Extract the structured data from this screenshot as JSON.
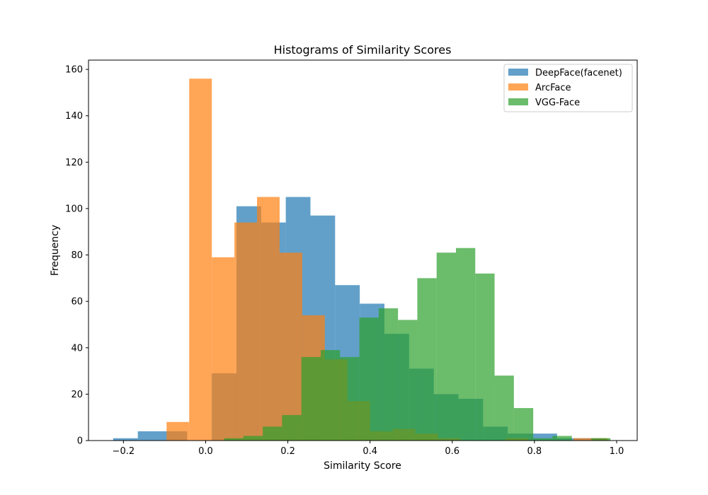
{
  "chart_data": {
    "type": "histogram",
    "title": "Histograms of Similarity Scores",
    "xlabel": "Similarity Score",
    "ylabel": "Frequency",
    "xlim": [
      -0.285,
      1.05
    ],
    "ylim": [
      0,
      164
    ],
    "xticks": [
      -0.2,
      0.0,
      0.2,
      0.4,
      0.6,
      0.8,
      1.0
    ],
    "xtick_labels": [
      "−0.2",
      "0.0",
      "0.2",
      "0.4",
      "0.6",
      "0.8",
      "1.0"
    ],
    "yticks": [
      0,
      20,
      40,
      60,
      80,
      100,
      120,
      140,
      160
    ],
    "ytick_labels": [
      "0",
      "20",
      "40",
      "60",
      "80",
      "100",
      "120",
      "140",
      "160"
    ],
    "legend_position": "top-right",
    "opacity": 0.7,
    "series": [
      {
        "name": "DeepFace(facenet)",
        "color": "#1f77b4",
        "bin_edges": [
          -0.225,
          -0.165,
          -0.105,
          -0.045,
          0.015,
          0.075,
          0.135,
          0.195,
          0.255,
          0.315,
          0.375,
          0.435,
          0.495,
          0.555,
          0.615,
          0.675,
          0.735,
          0.795,
          0.855,
          0.915,
          0.975
        ],
        "counts": [
          1,
          4,
          4,
          0,
          29,
          101,
          94,
          105,
          97,
          67,
          59,
          46,
          31,
          20,
          18,
          6,
          3,
          3,
          1,
          1
        ]
      },
      {
        "name": "ArcFace",
        "color": "#ff7f0e",
        "bin_edges": [
          -0.095,
          -0.04,
          0.015,
          0.07,
          0.125,
          0.18,
          0.235,
          0.29,
          0.345,
          0.4,
          0.455,
          0.51,
          0.565,
          0.62,
          0.675,
          0.73,
          0.785,
          0.84,
          0.895,
          0.95,
          0.98
        ],
        "counts": [
          8,
          156,
          79,
          94,
          105,
          81,
          54,
          35,
          17,
          4,
          5,
          3,
          1,
          0,
          0,
          1,
          0,
          0,
          1,
          1
        ]
      },
      {
        "name": "VGG-Face",
        "color": "#2ca02c",
        "bin_edges": [
          0.045,
          0.092,
          0.139,
          0.186,
          0.233,
          0.28,
          0.327,
          0.374,
          0.421,
          0.468,
          0.515,
          0.562,
          0.609,
          0.656,
          0.703,
          0.75,
          0.797,
          0.844,
          0.891,
          0.938,
          0.985
        ],
        "counts": [
          1,
          2,
          6,
          11,
          36,
          39,
          36,
          53,
          57,
          52,
          70,
          81,
          83,
          72,
          28,
          14,
          1,
          2,
          0,
          1
        ]
      }
    ]
  }
}
